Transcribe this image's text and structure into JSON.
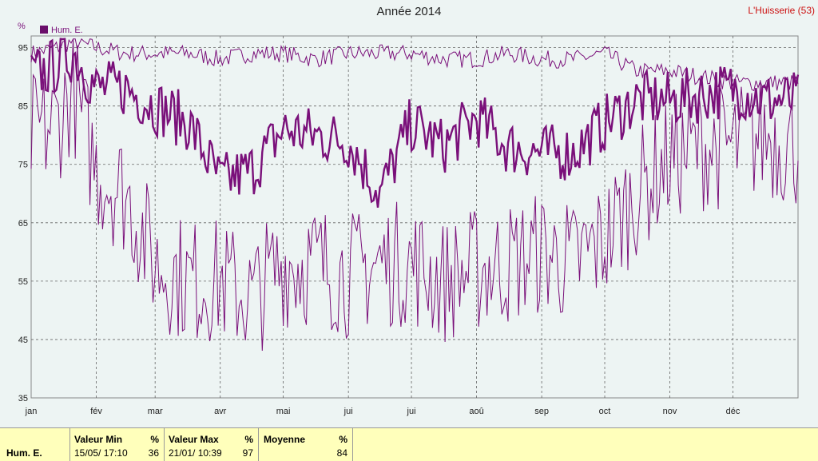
{
  "title": "Année 2014",
  "station": "L'Huisserie (53)",
  "colors": {
    "series": "#7a107a",
    "legend_box": "#6a0d6a",
    "grid": "#666666",
    "background": "#edf4f3",
    "station": "#cc1111",
    "footer": "#ffffbb"
  },
  "chart_data": {
    "type": "line",
    "title": "Année 2014",
    "unit": "%",
    "legend": "Hum. E.",
    "legend_placement": "top-left",
    "grid": true,
    "ylim": [
      35,
      97
    ],
    "yticks": [
      35,
      45,
      55,
      65,
      75,
      85,
      95
    ],
    "x_range_days": [
      0,
      365
    ],
    "months": [
      "jan",
      "fév",
      "mar",
      "avr",
      "mai",
      "jui",
      "jui",
      "aoû",
      "sep",
      "oct",
      "nov",
      "déc"
    ],
    "month_start_day": [
      0,
      31,
      59,
      90,
      120,
      151,
      181,
      212,
      243,
      273,
      304,
      334
    ],
    "series": [
      {
        "name": "Hum. E. (max)",
        "style": "thin",
        "x_days": [
          0,
          12,
          20,
          31,
          45,
          59,
          75,
          90,
          105,
          120,
          135,
          151,
          166,
          181,
          196,
          212,
          227,
          243,
          258,
          273,
          288,
          304,
          319,
          334,
          349,
          365
        ],
        "values": [
          94,
          95,
          96,
          95,
          94,
          94,
          94,
          93,
          94,
          94,
          93,
          94,
          94,
          94,
          93,
          93,
          94,
          93,
          93,
          94,
          91,
          91,
          90,
          89,
          89,
          89
        ]
      },
      {
        "name": "Hum. E. (moyenne)",
        "style": "thick",
        "x_days": [
          0,
          12,
          20,
          31,
          45,
          59,
          75,
          90,
          105,
          120,
          135,
          151,
          166,
          181,
          196,
          212,
          227,
          243,
          258,
          273,
          288,
          304,
          319,
          334,
          349,
          365
        ],
        "values": [
          90,
          92,
          94,
          88,
          88,
          85,
          82,
          72,
          74,
          81,
          80,
          79,
          70,
          82,
          78,
          83,
          78,
          77,
          77,
          82,
          86,
          86,
          87,
          88,
          86,
          86
        ]
      },
      {
        "name": "Hum. E. (min)",
        "style": "thin",
        "x_days": [
          0,
          12,
          20,
          31,
          45,
          59,
          75,
          90,
          105,
          120,
          135,
          151,
          166,
          181,
          196,
          212,
          227,
          243,
          258,
          273,
          288,
          304,
          319,
          334,
          349,
          365
        ],
        "values": [
          80,
          82,
          88,
          74,
          70,
          58,
          55,
          55,
          52,
          58,
          58,
          56,
          58,
          58,
          55,
          57,
          58,
          60,
          58,
          62,
          70,
          76,
          78,
          78,
          80,
          78
        ]
      }
    ]
  },
  "footer": {
    "row_label": "Hum. E.",
    "min_header": "Valeur Min",
    "min_unit": "%",
    "min_date": "15/05/ 17:10",
    "min_value": "36",
    "max_header": "Valeur Max",
    "max_unit": "%",
    "max_date": "21/01/ 10:39",
    "max_value": "97",
    "avg_header": "Moyenne",
    "avg_unit": "%",
    "avg_value": "84"
  }
}
